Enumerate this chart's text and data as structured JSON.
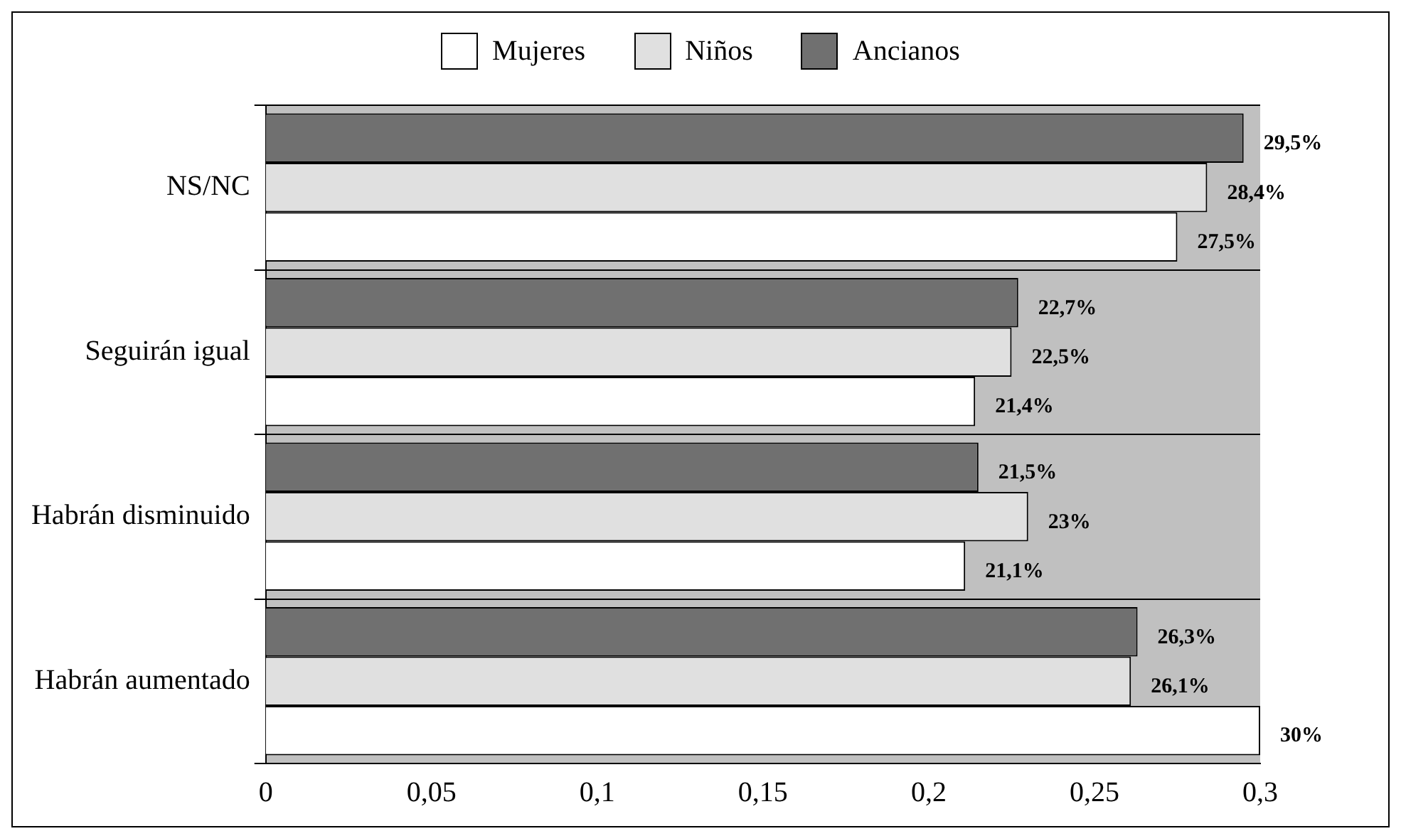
{
  "chart_data": {
    "type": "bar",
    "orientation": "horizontal",
    "categories": [
      "NS/NC",
      "Seguirán igual",
      "Habrán disminuido",
      "Habrán aumentado"
    ],
    "series": [
      {
        "name": "Mujeres",
        "color": "#ffffff",
        "values": [
          0.275,
          0.214,
          0.211,
          0.3
        ],
        "value_labels": [
          "27,5%",
          "21,4%",
          "21,1%",
          "30%"
        ]
      },
      {
        "name": "Niños",
        "color": "#e0e0e0",
        "values": [
          0.284,
          0.225,
          0.23,
          0.261
        ],
        "value_labels": [
          "28,4%",
          "22,5%",
          "23%",
          "26,1%"
        ]
      },
      {
        "name": "Ancianos",
        "color": "#707070",
        "values": [
          0.295,
          0.227,
          0.215,
          0.263
        ],
        "value_labels": [
          "29,5%",
          "22,7%",
          "21,5%",
          "26,3%"
        ]
      }
    ],
    "xlim": [
      0,
      0.3
    ],
    "xticks": [
      0,
      {
        "value": 0.05,
        "label": "0,05"
      },
      {
        "value": 0.1,
        "label": "0,1"
      },
      {
        "value": 0.15,
        "label": "0,15"
      },
      {
        "value": 0.2,
        "label": "0,2"
      },
      {
        "value": 0.25,
        "label": "0,25"
      },
      {
        "value": 0.3,
        "label": "0,3"
      }
    ],
    "grid": "y",
    "legend": "top"
  }
}
